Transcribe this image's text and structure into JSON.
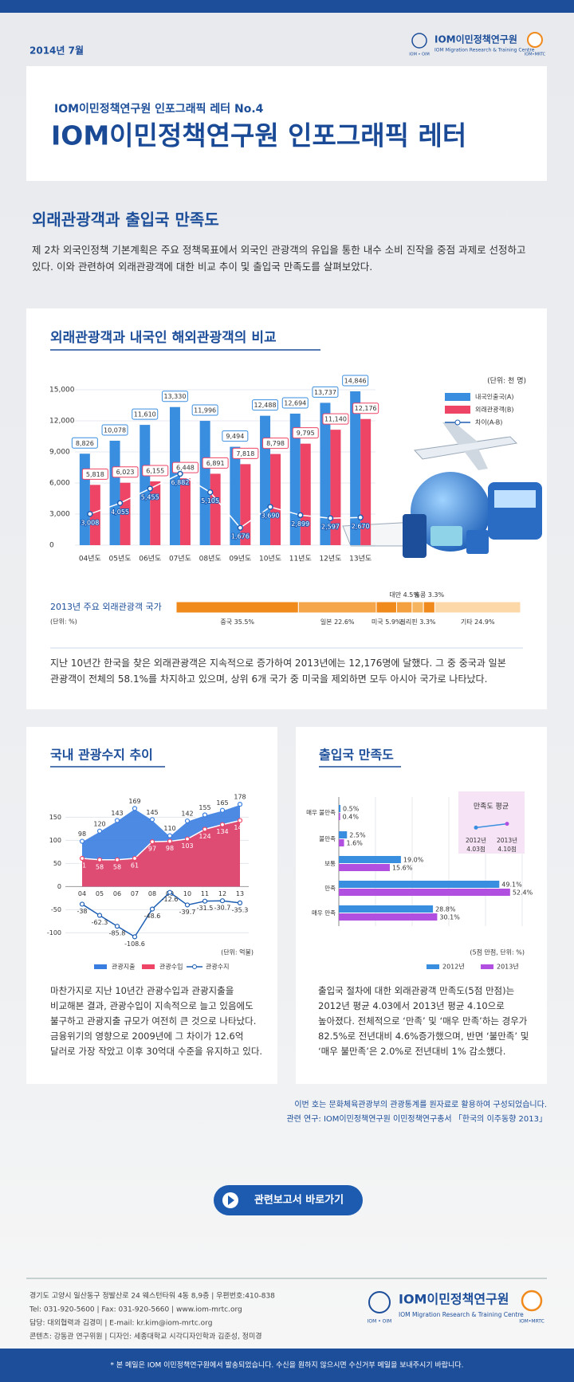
{
  "header": {
    "date": "2014년 7월",
    "logo": {
      "name": "IOM이민정책연구원",
      "subtitle": "IOM Migration Research & Training Centre",
      "left_mark": "IOM • OIM",
      "right_mark": "IOM•MRTC"
    },
    "series_title": "IOM이민정책연구원 인포그래픽 레터 No.4",
    "title": "IOM이민정책연구원 인포그래픽 레터"
  },
  "section": {
    "title": "외래관광객과 출입국 만족도",
    "intro": "제 2차 외국인정책 기본계획은 주요 정책목표에서 외국인 관광객의 유입을 통한 내수 소비 진작을 중점 과제로 선정하고 있다. 이와 관련하여 외래관광객에 대한 비교 추이 및 출입국 만족도를 살펴보았다."
  },
  "cards": [
    {
      "title": "외래관광객과 내국인 해외관광객의 비교",
      "text": "지난 10년간 한국을 찾은 외래관광객은 지속적으로 증가하여 2013년에는 12,176명에 달했다. 그 중 중국과 일본 관광객이 전체의 58.1%를 차지하고 있으며, 상위 6개 국가 중 미국을 제외하면 모두 아시아 국가로 나타났다."
    },
    {
      "title": "국내 관광수지 추이",
      "text": "마찬가지로 지난 10년간 관광수입과 관광지출을 비교해본 결과, 관광수입이 지속적으로 늘고 있음에도 불구하고 관광지출 규모가 여전히 큰 것으로 나타났다. 금융위기의 영향으로 2009년에 그 차이가 12.6억 달러로 가장 작았고 이후 30억대 수준을 유지하고 있다."
    },
    {
      "title": "출입국 만족도",
      "text": "출입국 절차에 대한 외래관광객 만족도(5점 만점)는 2012년 평균 4.03에서 2013년 평균 4.10으로 높아졌다. 전체적으로 ‘만족’ 및 ‘매우 만족’하는 경우가 82.5%로 전년대비 4.6%증가했으며, 반면 ‘불만족’ 및 ‘매우 불만족’은 2.0%로 전년대비 1% 감소했다."
    }
  ],
  "chart_data": [
    {
      "type": "bar-line",
      "unit": "(단위: 천 명)",
      "categories": [
        "04년도",
        "05년도",
        "06년도",
        "07년도",
        "08년도",
        "09년도",
        "10년도",
        "11년도",
        "12년도",
        "13년도"
      ],
      "series": [
        {
          "name": "내국인출국(A)",
          "color": "#3a8ee0",
          "values": [
            8826,
            10078,
            11610,
            13330,
            11996,
            9494,
            12488,
            12694,
            13737,
            14846
          ],
          "value_labels": [
            "8,826",
            "10,078",
            "11,610",
            "13,330",
            "11,996",
            "9,494",
            "12,488",
            "12,694",
            "13,737",
            "14,846"
          ]
        },
        {
          "name": "외래관광객(B)",
          "color": "#ee4466",
          "values": [
            5818,
            6023,
            6155,
            6448,
            6891,
            7818,
            8798,
            9795,
            11140,
            12176
          ],
          "value_labels": [
            "5,818",
            "6,023",
            "6,155",
            "6,448",
            "6,891",
            "7,818",
            "8,798",
            "9,795",
            "11,140",
            "12,176"
          ]
        },
        {
          "name": "차이(A-B)",
          "type": "line",
          "color": "#1e5fb4",
          "values": [
            3008,
            4055,
            5455,
            6882,
            5105,
            1676,
            3690,
            2899,
            2597,
            2670
          ],
          "value_labels": [
            "3,008",
            "4,055",
            "5,455",
            "6,882",
            "5,105",
            "1,676",
            "3,690",
            "2,899",
            "2,597",
            "2,670"
          ]
        }
      ],
      "ylim": [
        0,
        15000
      ],
      "yticks": [
        0,
        {
          "value": 3000,
          "label": "3,000"
        },
        {
          "value": 6000,
          "label": "6,000"
        },
        {
          "value": 9000,
          "label": "9,000"
        },
        {
          "value": 12000,
          "label": "12,000"
        },
        {
          "value": 15000,
          "label": "15,000"
        }
      ]
    },
    {
      "type": "stacked-bar",
      "title": "2013년 주요 외래관광객 국가",
      "unit": "(단위: %)",
      "categories": [
        "중국",
        "일본",
        "미국",
        "대만",
        "필리핀",
        "홍콩",
        "기타"
      ],
      "values": [
        35.5,
        22.6,
        5.9,
        4.5,
        3.3,
        3.3,
        24.9
      ],
      "value_labels": [
        "35.5%",
        "22.6%",
        "5.9%",
        "4.5%",
        "3.3%",
        "3.3%",
        "24.9%"
      ],
      "colors": [
        "#f08a1c",
        "#f5a64a",
        "#f08a1c",
        "#f4a040",
        "#f6b45e",
        "#f08a1c",
        "#fcd8a8"
      ],
      "xlim": [
        0,
        100
      ]
    },
    {
      "type": "area-line",
      "unit": "(단위: 억불)",
      "categories": [
        "04",
        "05",
        "06",
        "07",
        "08",
        "09",
        "10",
        "11",
        "12",
        "13"
      ],
      "series": [
        {
          "name": "관광지출",
          "type": "area",
          "color": "#3a7de0",
          "values": [
            98,
            120,
            143,
            169,
            145,
            110,
            142,
            155,
            165,
            178
          ]
        },
        {
          "name": "관광수입",
          "type": "area",
          "color": "#ee4466",
          "values": [
            61,
            58,
            58,
            61,
            97,
            98,
            103,
            124,
            134,
            143
          ]
        },
        {
          "name": "관광수지",
          "type": "line",
          "color": "#1e5fb4",
          "values": [
            -38,
            -62.3,
            -85.8,
            -108.6,
            -48.6,
            -12.6,
            -39.7,
            -31.5,
            -30.7,
            -35.3
          ]
        }
      ],
      "ylim": [
        -120,
        180
      ],
      "yticks": [
        -100,
        -50,
        0,
        50,
        100,
        150
      ]
    },
    {
      "type": "hbar",
      "unit": "(5점 만점, 단위: %)",
      "categories": [
        "매우 불만족",
        "불만족",
        "보통",
        "만족",
        "매우 만족"
      ],
      "series": [
        {
          "name": "2012년",
          "color": "#3a8ee0",
          "values": [
            0.5,
            2.5,
            19.0,
            49.1,
            28.8
          ],
          "value_labels": [
            "0.5%",
            "2.5%",
            "19.0%",
            "49.1%",
            "28.8%"
          ]
        },
        {
          "name": "2013년",
          "color": "#b04fe0",
          "values": [
            0.4,
            1.6,
            15.6,
            52.4,
            30.1
          ],
          "value_labels": [
            "0.4%",
            "1.6%",
            "15.6%",
            "52.4%",
            "30.1%"
          ]
        }
      ],
      "xlim": [
        0,
        60
      ],
      "inset": {
        "title": "만족도 평균",
        "categories": [
          "2012년",
          "2013년"
        ],
        "values": [
          4.03,
          4.1
        ],
        "value_labels": [
          "4.03점",
          "4.10점"
        ],
        "ylim": [
          3.9,
          4.2
        ]
      }
    }
  ],
  "source": {
    "lines": [
      "이번 호는 문화체육관광부의 관광통계를 원자료로 활용하여 구성되었습니다.",
      "관련 연구: IOM이민정책연구원 이민정책연구총서 「한국의 이주동향 2013」"
    ]
  },
  "button": {
    "label": "관련보고서 바로가기"
  },
  "footer": {
    "lines": [
      "경기도 고양시 일산동구 정발산로 24 웨스턴타워 4동 8,9층 | 우편번호:410-838",
      "Tel: 031-920-5600 | Fax: 031-920-5660 | www.iom-mrtc.org",
      "담당: 대외협력과 김경미 | E-mail: kr.kim@iom-mrtc.org",
      "콘텐츠: 강동관 연구위원 | 디자인: 세종대학교 시각디자인학과 김준성, 정미경"
    ]
  },
  "notice": "* 본 메일은 IOM 이민정책연구원에서 발송되었습니다. 수신을 원하지 않으시면 수신거부 메일을 보내주시기 바랍니다."
}
